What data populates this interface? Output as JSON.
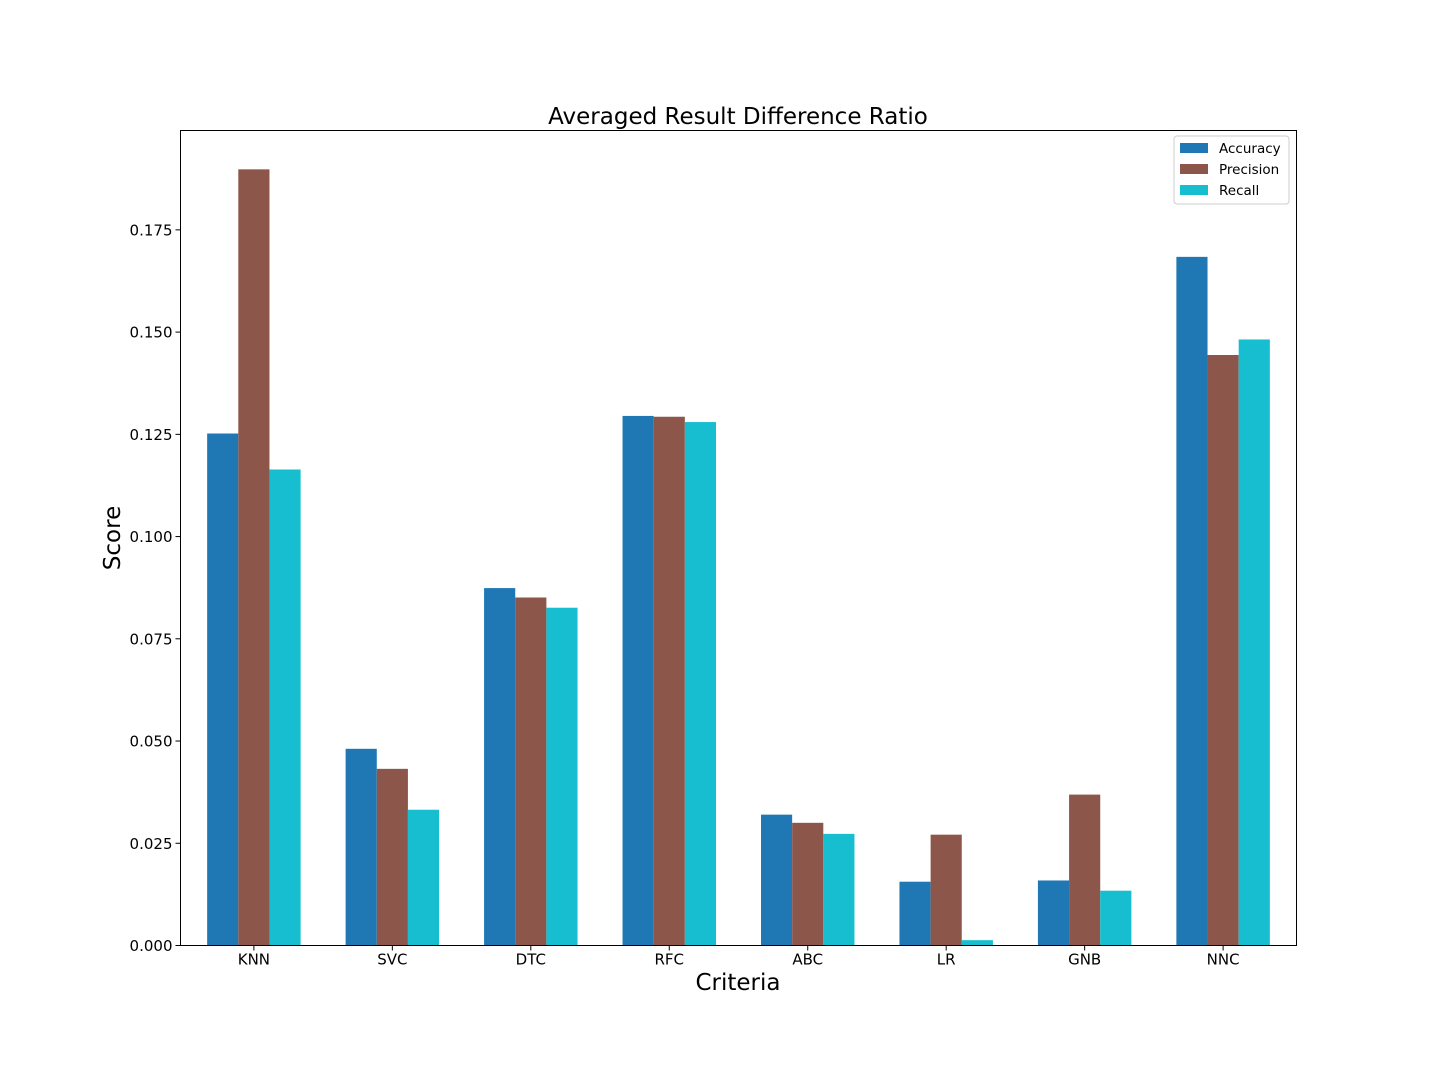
{
  "chart_data": {
    "type": "bar",
    "title": "Averaged Result Difference Ratio",
    "xlabel": "Criteria",
    "ylabel": "Score",
    "categories": [
      "KNN",
      "SVC",
      "DTC",
      "RFC",
      "ABC",
      "LR",
      "GNB",
      "NNC"
    ],
    "series": [
      {
        "name": "Accuracy",
        "color": "#1f77b4",
        "values": [
          0.1252,
          0.0481,
          0.0874,
          0.1295,
          0.032,
          0.0156,
          0.0159,
          0.1684
        ]
      },
      {
        "name": "Precision",
        "color": "#8c564b",
        "values": [
          0.1898,
          0.0432,
          0.0851,
          0.1293,
          0.03,
          0.0271,
          0.0369,
          0.1444
        ]
      },
      {
        "name": "Recall",
        "color": "#17becf",
        "values": [
          0.1164,
          0.0332,
          0.0826,
          0.128,
          0.0273,
          0.0013,
          0.0134,
          0.1482
        ]
      }
    ],
    "ylim": [
      0,
      0.1993
    ],
    "yticks": [
      0.0,
      0.025,
      0.05,
      0.075,
      0.1,
      0.125,
      0.15,
      0.175
    ],
    "ytick_labels": [
      "0.000",
      "0.025",
      "0.050",
      "0.075",
      "0.100",
      "0.125",
      "0.150",
      "0.175"
    ],
    "grid": false,
    "legend_position": "top-right"
  }
}
